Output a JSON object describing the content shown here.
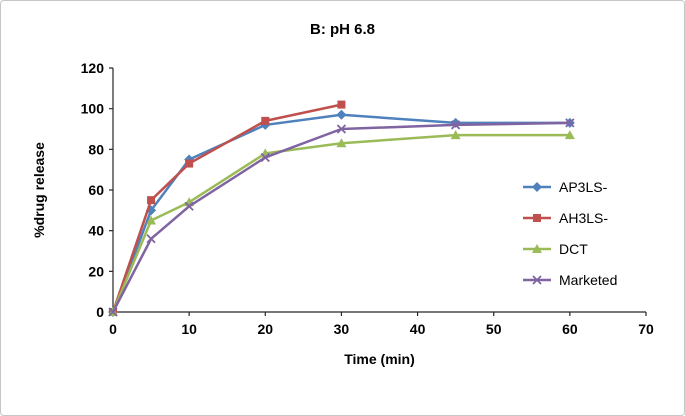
{
  "window": {
    "background": "#ffffff",
    "border_color": "#c6c6c6"
  },
  "chart_data": {
    "type": "line",
    "title": "B: pH 6.8",
    "xlabel": "Time (min)",
    "ylabel": "%drug release",
    "xlim": [
      0,
      70
    ],
    "ylim": [
      0,
      120
    ],
    "xticks": [
      0,
      10,
      20,
      30,
      40,
      50,
      60,
      70
    ],
    "yticks": [
      0,
      20,
      40,
      60,
      80,
      100,
      120
    ],
    "grid": false,
    "legend_position": "right-inside",
    "axis_color": "#262626",
    "tick_label_color": "#000000",
    "series": [
      {
        "name": "AP3LS-",
        "color": "#4F81BD",
        "marker": "diamond",
        "x": [
          0,
          5,
          10,
          20,
          30,
          45,
          60
        ],
        "values": [
          0,
          50,
          75,
          92,
          97,
          93,
          93
        ]
      },
      {
        "name": "AH3LS-",
        "color": "#C0504D",
        "marker": "square",
        "x": [
          0,
          5,
          10,
          20,
          30
        ],
        "values": [
          0,
          55,
          73,
          94,
          102
        ]
      },
      {
        "name": "DCT",
        "color": "#9BBB59",
        "marker": "triangle",
        "x": [
          0,
          5,
          10,
          20,
          30,
          45,
          60
        ],
        "values": [
          0,
          45,
          54,
          78,
          83,
          87,
          87
        ]
      },
      {
        "name": "Marketed",
        "color": "#8064A2",
        "marker": "x",
        "x": [
          0,
          5,
          10,
          20,
          30,
          45,
          60
        ],
        "values": [
          0,
          36,
          52,
          76,
          90,
          92,
          93
        ]
      }
    ]
  }
}
